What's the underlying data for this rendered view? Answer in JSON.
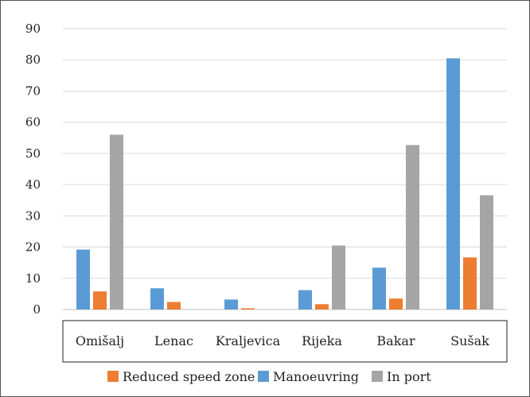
{
  "chart_data": {
    "type": "bar",
    "categories": [
      "Omišalj",
      "Lenac",
      "Kraljevica",
      "Rijeka",
      "Bakar",
      "Sušak"
    ],
    "series": [
      {
        "name": "Manoeuvring",
        "color": "#5B9BD5",
        "values": [
          19.2,
          6.8,
          3.2,
          6.2,
          13.4,
          80.5
        ]
      },
      {
        "name": "Reduced speed zone",
        "color": "#ED7D31",
        "values": [
          5.8,
          2.4,
          0.4,
          1.7,
          3.5,
          16.7
        ]
      },
      {
        "name": "In port",
        "color": "#A5A5A5",
        "values": [
          56.0,
          0,
          0,
          20.5,
          52.7,
          36.6
        ]
      }
    ],
    "legend_order": [
      "Reduced speed zone",
      "Manoeuvring",
      "In port"
    ],
    "ylim": [
      0,
      90
    ],
    "yticks": [
      0,
      10,
      20,
      30,
      40,
      50,
      60,
      70,
      80,
      90
    ],
    "grid": true,
    "legend_position": "bottom"
  }
}
